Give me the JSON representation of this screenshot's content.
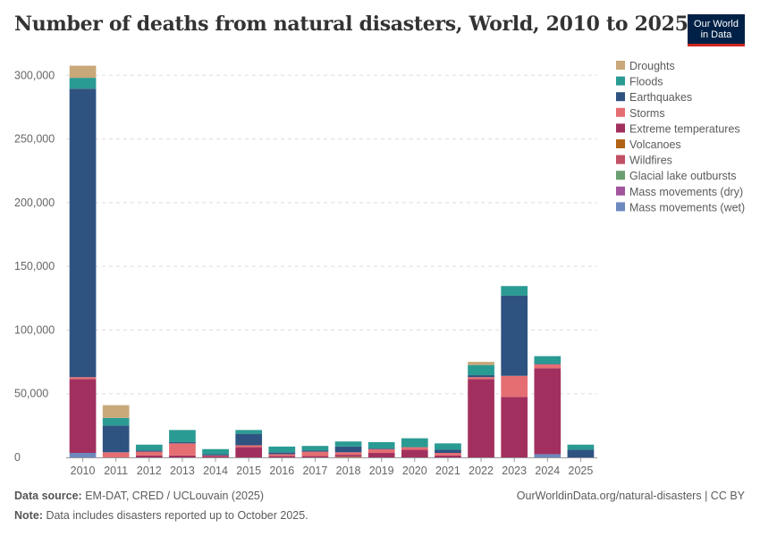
{
  "title": "Number of deaths from natural disasters, World, 2010 to 2025",
  "logo": {
    "line1": "Our World",
    "line2": "in Data"
  },
  "footer": {
    "source_label": "Data source:",
    "source_text": "EM-DAT, CRED / UCLouvain (2025)",
    "note_label": "Note:",
    "note_text": "Data includes disasters reported up to October 2025.",
    "url": "OurWorldinData.org/natural-disasters | CC BY"
  },
  "chart_data": {
    "type": "bar",
    "stacked": true,
    "title": "Number of deaths from natural disasters, World, 2010 to 2025",
    "categories": [
      "2010",
      "2011",
      "2012",
      "2013",
      "2014",
      "2015",
      "2016",
      "2017",
      "2018",
      "2019",
      "2020",
      "2021",
      "2022",
      "2023",
      "2024",
      "2025"
    ],
    "ylim": [
      0,
      310000
    ],
    "yticks": [
      0,
      50000,
      100000,
      150000,
      200000,
      250000,
      300000
    ],
    "ytick_labels": [
      "0",
      "50,000",
      "100,000",
      "150,000",
      "200,000",
      "250,000",
      "300,000"
    ],
    "grid": true,
    "legend_position": "right",
    "series": [
      {
        "name": "Mass movements (wet)",
        "color": "#6d8abf",
        "values": [
          3500,
          0,
          0,
          0,
          0,
          0,
          0,
          0,
          0,
          0,
          0,
          0,
          0,
          0,
          2500,
          0
        ]
      },
      {
        "name": "Mass movements (dry)",
        "color": "#a2559c",
        "values": [
          0,
          0,
          0,
          0,
          0,
          0,
          0,
          0,
          0,
          0,
          0,
          0,
          0,
          0,
          0,
          0
        ]
      },
      {
        "name": "Glacial lake outbursts",
        "color": "#6a9f72",
        "values": [
          0,
          0,
          0,
          0,
          0,
          0,
          0,
          0,
          0,
          0,
          0,
          0,
          0,
          0,
          0,
          0
        ]
      },
      {
        "name": "Wildfires",
        "color": "#c15065",
        "values": [
          0,
          0,
          0,
          0,
          0,
          0,
          0,
          0,
          100,
          0,
          0,
          0,
          0,
          0,
          0,
          0
        ]
      },
      {
        "name": "Volcanoes",
        "color": "#b16214",
        "values": [
          0,
          0,
          0,
          0,
          0,
          0,
          0,
          0,
          400,
          0,
          0,
          0,
          0,
          0,
          0,
          0
        ]
      },
      {
        "name": "Extreme temperatures",
        "color": "#a2305f",
        "values": [
          58000,
          0,
          1500,
          1500,
          1000,
          8000,
          1000,
          1000,
          1500,
          3500,
          6000,
          1500,
          61500,
          47500,
          67500,
          0
        ]
      },
      {
        "name": "Storms",
        "color": "#e56e72",
        "values": [
          1500,
          4000,
          3000,
          9500,
          500,
          1500,
          1500,
          3500,
          2000,
          3000,
          2000,
          2000,
          1500,
          16500,
          3000,
          0
        ]
      },
      {
        "name": "Earthquakes",
        "color": "#2f5381",
        "values": [
          226500,
          21000,
          1000,
          1000,
          1000,
          9000,
          1500,
          1000,
          4500,
          500,
          0,
          2500,
          1500,
          63000,
          500,
          6000
        ]
      },
      {
        "name": "Floods",
        "color": "#2a9b93",
        "values": [
          8500,
          6000,
          4500,
          9500,
          4000,
          3000,
          4500,
          3500,
          4000,
          5000,
          7000,
          5000,
          8000,
          7500,
          6000,
          4000
        ]
      },
      {
        "name": "Droughts",
        "color": "#c9a87a",
        "values": [
          9500,
          10000,
          0,
          0,
          0,
          0,
          0,
          0,
          0,
          0,
          0,
          0,
          2500,
          0,
          0,
          0
        ]
      }
    ]
  }
}
